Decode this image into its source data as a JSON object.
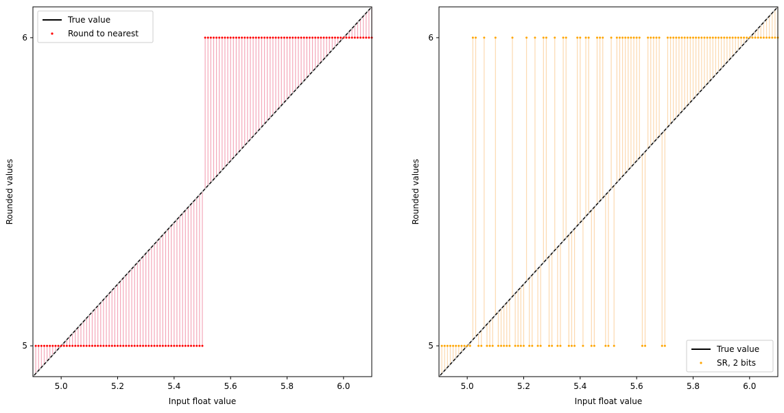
{
  "chart_data": [
    {
      "type": "scatter",
      "xlabel": "Input float value",
      "ylabel": "Rounded values",
      "xlim": [
        4.9,
        6.1
      ],
      "ylim": [
        4.9,
        6.1
      ],
      "x_ticks": [
        "5.0",
        "5.2",
        "5.4",
        "5.6",
        "5.8",
        "6.0"
      ],
      "x_tick_values": [
        5.0,
        5.2,
        5.4,
        5.6,
        5.8,
        6.0
      ],
      "y_ticks": [
        "5",
        "6"
      ],
      "y_tick_values": [
        5,
        6
      ],
      "legend_position": "top-left",
      "legend": [
        "True value",
        "Round to nearest"
      ],
      "series": [
        {
          "name": "True value",
          "kind": "line",
          "color": "#000000",
          "x": [
            4.9,
            6.1
          ],
          "values": [
            4.9,
            6.1
          ]
        },
        {
          "name": "Round to nearest",
          "kind": "points",
          "color": "#ff0000",
          "stem_color": "#f4a7b9",
          "x_start": 4.91,
          "x_step": 0.01,
          "count": 120,
          "values": [
            5,
            5,
            5,
            5,
            5,
            5,
            5,
            5,
            5,
            5,
            5,
            5,
            5,
            5,
            5,
            5,
            5,
            5,
            5,
            5,
            5,
            5,
            5,
            5,
            5,
            5,
            5,
            5,
            5,
            5,
            5,
            5,
            5,
            5,
            5,
            5,
            5,
            5,
            5,
            5,
            5,
            5,
            5,
            5,
            5,
            5,
            5,
            5,
            5,
            5,
            5,
            5,
            5,
            5,
            5,
            5,
            5,
            5,
            5,
            5,
            6,
            6,
            6,
            6,
            6,
            6,
            6,
            6,
            6,
            6,
            6,
            6,
            6,
            6,
            6,
            6,
            6,
            6,
            6,
            6,
            6,
            6,
            6,
            6,
            6,
            6,
            6,
            6,
            6,
            6,
            6,
            6,
            6,
            6,
            6,
            6,
            6,
            6,
            6,
            6,
            6,
            6,
            6,
            6,
            6,
            6,
            6,
            6,
            6,
            6,
            6,
            6,
            6,
            6,
            6,
            6,
            6,
            6,
            6,
            6
          ]
        }
      ]
    },
    {
      "type": "scatter",
      "xlabel": "Input float value",
      "ylabel": "Rounded values",
      "xlim": [
        4.9,
        6.1
      ],
      "ylim": [
        4.9,
        6.1
      ],
      "x_ticks": [
        "5.0",
        "5.2",
        "5.4",
        "5.6",
        "5.8",
        "6.0"
      ],
      "x_tick_values": [
        5.0,
        5.2,
        5.4,
        5.6,
        5.8,
        6.0
      ],
      "y_ticks": [
        "5",
        "6"
      ],
      "y_tick_values": [
        5,
        6
      ],
      "legend_position": "bottom-right",
      "legend": [
        "True value",
        "SR, 2 bits"
      ],
      "series": [
        {
          "name": "True value",
          "kind": "line",
          "color": "#000000",
          "x": [
            4.9,
            6.1
          ],
          "values": [
            4.9,
            6.1
          ]
        },
        {
          "name": "SR, 2 bits",
          "kind": "points",
          "color": "#ffa500",
          "stem_color": "#fcd9b0",
          "x_start": 4.91,
          "x_step": 0.01,
          "count": 120,
          "values": [
            5,
            5,
            5,
            5,
            5,
            5,
            5,
            5,
            5,
            5,
            5,
            6,
            6,
            5,
            5,
            6,
            5,
            5,
            5,
            6,
            5,
            5,
            5,
            5,
            5,
            6,
            5,
            5,
            5,
            5,
            6,
            5,
            5,
            6,
            5,
            5,
            6,
            6,
            5,
            5,
            6,
            5,
            5,
            6,
            6,
            5,
            5,
            5,
            6,
            6,
            5,
            6,
            6,
            5,
            5,
            6,
            6,
            6,
            5,
            5,
            6,
            5,
            6,
            6,
            6,
            6,
            6,
            6,
            6,
            6,
            6,
            5,
            5,
            6,
            6,
            6,
            6,
            6,
            5,
            5,
            6,
            6,
            6,
            6,
            6,
            6,
            6,
            6,
            6,
            6,
            6,
            6,
            6,
            6,
            6,
            6,
            6,
            6,
            6,
            6,
            6,
            6,
            6,
            6,
            6,
            6,
            6,
            6,
            6,
            6,
            6,
            6,
            6,
            6,
            6,
            6,
            6,
            6,
            6,
            6
          ]
        }
      ]
    }
  ]
}
